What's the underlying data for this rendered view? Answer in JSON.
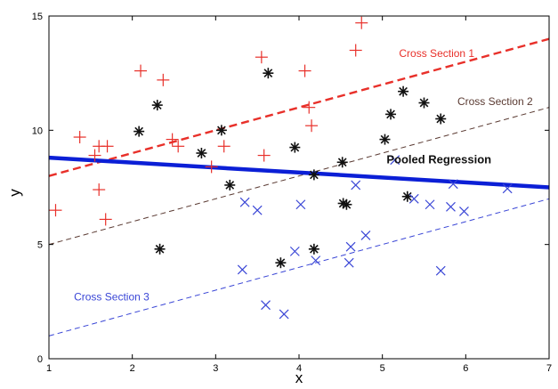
{
  "chart_data": {
    "type": "scatter",
    "title": "",
    "xlabel": "x",
    "ylabel": "y",
    "xlim": [
      1,
      7
    ],
    "ylim": [
      0,
      15
    ],
    "xticks": [
      "1",
      "2",
      "3",
      "4",
      "5",
      "6",
      "7"
    ],
    "yticks": [
      "0",
      "5",
      "10",
      "15"
    ],
    "x_tick_values": [
      1,
      2,
      3,
      4,
      5,
      6,
      7
    ],
    "y_tick_values": [
      0,
      5,
      10,
      15
    ],
    "grid": false,
    "legend": "none",
    "series": [
      {
        "marker": "plus",
        "color": "#e8302a",
        "points": [
          [
            1.08,
            6.5
          ],
          [
            1.37,
            9.7
          ],
          [
            1.55,
            8.9
          ],
          [
            1.6,
            9.3
          ],
          [
            1.6,
            7.4
          ],
          [
            1.68,
            6.1
          ],
          [
            1.7,
            9.3
          ],
          [
            2.1,
            12.6
          ],
          [
            2.37,
            12.2
          ],
          [
            2.48,
            9.6
          ],
          [
            2.55,
            9.3
          ],
          [
            2.95,
            8.4
          ],
          [
            3.1,
            9.3
          ],
          [
            3.55,
            13.2
          ],
          [
            3.58,
            8.9
          ],
          [
            4.07,
            12.6
          ],
          [
            4.12,
            11.0
          ],
          [
            4.15,
            10.2
          ],
          [
            4.68,
            13.5
          ],
          [
            4.75,
            14.7
          ]
        ]
      },
      {
        "marker": "star",
        "color": "#111111",
        "points": [
          [
            2.08,
            9.95
          ],
          [
            2.3,
            11.1
          ],
          [
            2.33,
            4.8
          ],
          [
            2.83,
            9.0
          ],
          [
            3.07,
            10.0
          ],
          [
            3.17,
            7.6
          ],
          [
            3.63,
            12.5
          ],
          [
            3.78,
            4.2
          ],
          [
            3.95,
            9.25
          ],
          [
            4.18,
            8.05
          ],
          [
            4.18,
            4.8
          ],
          [
            4.52,
            8.6
          ],
          [
            4.53,
            6.8
          ],
          [
            4.57,
            6.75
          ],
          [
            5.03,
            9.6
          ],
          [
            5.1,
            10.7
          ],
          [
            5.25,
            11.7
          ],
          [
            5.3,
            7.1
          ],
          [
            5.5,
            11.2
          ],
          [
            5.7,
            10.5
          ]
        ]
      },
      {
        "marker": "x",
        "color": "#3a46d6",
        "points": [
          [
            3.32,
            3.9
          ],
          [
            3.35,
            6.85
          ],
          [
            3.5,
            6.5
          ],
          [
            3.6,
            2.35
          ],
          [
            3.82,
            1.95
          ],
          [
            3.95,
            4.7
          ],
          [
            4.02,
            6.75
          ],
          [
            4.2,
            4.3
          ],
          [
            4.6,
            4.2
          ],
          [
            4.62,
            4.9
          ],
          [
            4.68,
            7.6
          ],
          [
            4.8,
            5.4
          ],
          [
            5.15,
            8.7
          ],
          [
            5.38,
            7.0
          ],
          [
            5.57,
            6.75
          ],
          [
            5.7,
            3.85
          ],
          [
            5.82,
            6.65
          ],
          [
            5.85,
            7.65
          ],
          [
            5.98,
            6.45
          ],
          [
            6.5,
            7.45
          ]
        ]
      }
    ],
    "lines": [
      {
        "label": "Cross Section 1",
        "color": "#e8302a",
        "dash": "dashed",
        "width": 2.4,
        "x": [
          1,
          7
        ],
        "y": [
          8.0,
          14.0
        ]
      },
      {
        "label": "Cross Section 2",
        "color": "#5a3a32",
        "dash": "dashed",
        "width": 1.0,
        "x": [
          1,
          7
        ],
        "y": [
          5.0,
          11.0
        ]
      },
      {
        "label": "Pooled Regression",
        "color": "#0b1fd6",
        "dash": "solid",
        "width": 4.5,
        "x": [
          1,
          7
        ],
        "y": [
          8.8,
          7.5
        ]
      },
      {
        "label": "Cross Section 3",
        "color": "#3a46d6",
        "dash": "dashed",
        "width": 1.0,
        "x": [
          1,
          7
        ],
        "y": [
          1.0,
          7.0
        ]
      }
    ],
    "annotations": [
      {
        "text": "Cross Section  1",
        "color": "#e8302a",
        "bold": false,
        "x": 5.2,
        "y": 13.2
      },
      {
        "text": "Cross Section  2",
        "color": "#5a3a32",
        "bold": false,
        "x": 5.9,
        "y": 11.1
      },
      {
        "text": "Pooled Regression",
        "color": "#111111",
        "bold": true,
        "x": 5.05,
        "y": 8.55
      },
      {
        "text": "Cross Section  3",
        "color": "#3a46d6",
        "bold": false,
        "x": 1.3,
        "y": 2.55
      }
    ]
  }
}
